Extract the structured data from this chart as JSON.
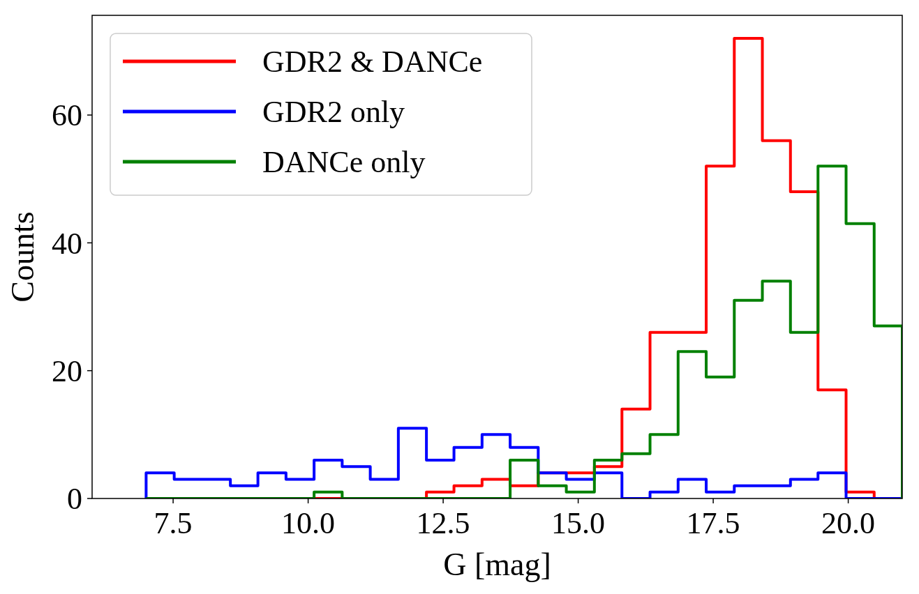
{
  "chart_data": {
    "type": "histogram",
    "xlabel": "G [mag]",
    "ylabel": "Counts",
    "bins": [
      7,
      7.52,
      8.04,
      8.56,
      9.07,
      9.59,
      10.11,
      10.63,
      11.15,
      11.67,
      12.19,
      12.7,
      13.22,
      13.74,
      14.26,
      14.78,
      15.3,
      15.81,
      16.33,
      16.85,
      17.37,
      17.89,
      18.41,
      18.93,
      19.44,
      19.96,
      20.48,
      21
    ],
    "series": [
      {
        "name": "GDR2 & DANCe",
        "color": "#ff0000",
        "values": [
          0,
          0,
          0,
          0,
          0,
          0,
          0,
          0,
          0,
          0,
          1,
          2,
          3,
          2,
          4,
          4,
          5,
          14,
          26,
          26,
          52,
          72,
          56,
          48,
          17,
          1,
          0
        ]
      },
      {
        "name": "GDR2 only",
        "color": "#0000ff",
        "values": [
          4,
          3,
          3,
          2,
          4,
          3,
          6,
          5,
          3,
          11,
          6,
          8,
          10,
          8,
          4,
          3,
          4,
          0,
          1,
          3,
          1,
          2,
          2,
          3,
          4,
          0,
          0
        ]
      },
      {
        "name": "DANCe only",
        "color": "#008000",
        "values": [
          0,
          0,
          0,
          0,
          0,
          0,
          1,
          0,
          0,
          0,
          0,
          0,
          0,
          6,
          2,
          1,
          6,
          7,
          10,
          23,
          19,
          31,
          34,
          26,
          52,
          43,
          27
        ]
      }
    ],
    "xlim": [
      6,
      21
    ],
    "ylim": [
      0,
      75.6
    ],
    "xticks": [
      7.5,
      {
        "value": 10,
        "label": "10.0"
      },
      12.5,
      {
        "value": 15,
        "label": "15.0"
      },
      17.5,
      {
        "value": 20,
        "label": "20.0"
      }
    ],
    "yticks": [
      0,
      20,
      40,
      60
    ],
    "legend": "top left"
  }
}
